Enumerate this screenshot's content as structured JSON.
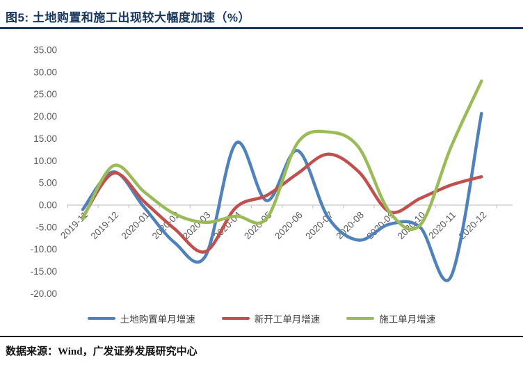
{
  "header": {
    "title": "图5:  土地购置和施工出现较大幅度加速（%）"
  },
  "footer": {
    "source": "数据来源：Wind，广发证券发展研究中心"
  },
  "colors": {
    "title_navy": "#17365D",
    "axis_text_gray": "#595959",
    "axis_line_gray": "#C6C6C6",
    "series_blue": "#4F81BD",
    "series_red": "#C0504D",
    "series_green": "#9BBB59"
  },
  "chart_data": {
    "type": "line",
    "smooth": true,
    "grid": "none",
    "legend_position": "bottom",
    "title": "土地购置和施工出现较大幅度加速（%）",
    "xlabel": "",
    "ylabel": "",
    "ylim": [
      -20,
      35
    ],
    "y_tick_step": 5,
    "y_tick_labels": [
      "35.00",
      "30.00",
      "25.00",
      "20.00",
      "15.00",
      "10.00",
      "5.00",
      "0.00",
      "-5.00",
      "-10.00",
      "-15.00",
      "-20.00"
    ],
    "categories": [
      "2019-11",
      "2019-12",
      "2020-01",
      "2020-02",
      "2020-03",
      "2020-04",
      "2020-05",
      "2020-06",
      "2020-07",
      "2020-08",
      "2020-09",
      "2020-10",
      "2020-11",
      "2020-12"
    ],
    "series": [
      {
        "name": "土地购置单月增速",
        "color": "#4F81BD",
        "values": [
          -1.0,
          7.5,
          -0.5,
          -8.5,
          -11.5,
          14.0,
          1.0,
          12.3,
          -2.8,
          -7.9,
          -4.3,
          -5.0,
          -16.2,
          20.7
        ]
      },
      {
        "name": "新开工单月增速",
        "color": "#C0504D",
        "values": [
          -2.8,
          7.2,
          0.8,
          -5.4,
          -10.5,
          -0.5,
          2.2,
          7.1,
          11.5,
          7.5,
          -1.5,
          1.5,
          4.5,
          6.4
        ]
      },
      {
        "name": "施工单月增速",
        "color": "#9BBB59",
        "values": [
          -3.1,
          8.9,
          3.0,
          -2.0,
          -3.9,
          -2.5,
          -3.0,
          14.0,
          16.5,
          13.0,
          -1.5,
          -4.5,
          13.0,
          28.0
        ]
      }
    ]
  }
}
